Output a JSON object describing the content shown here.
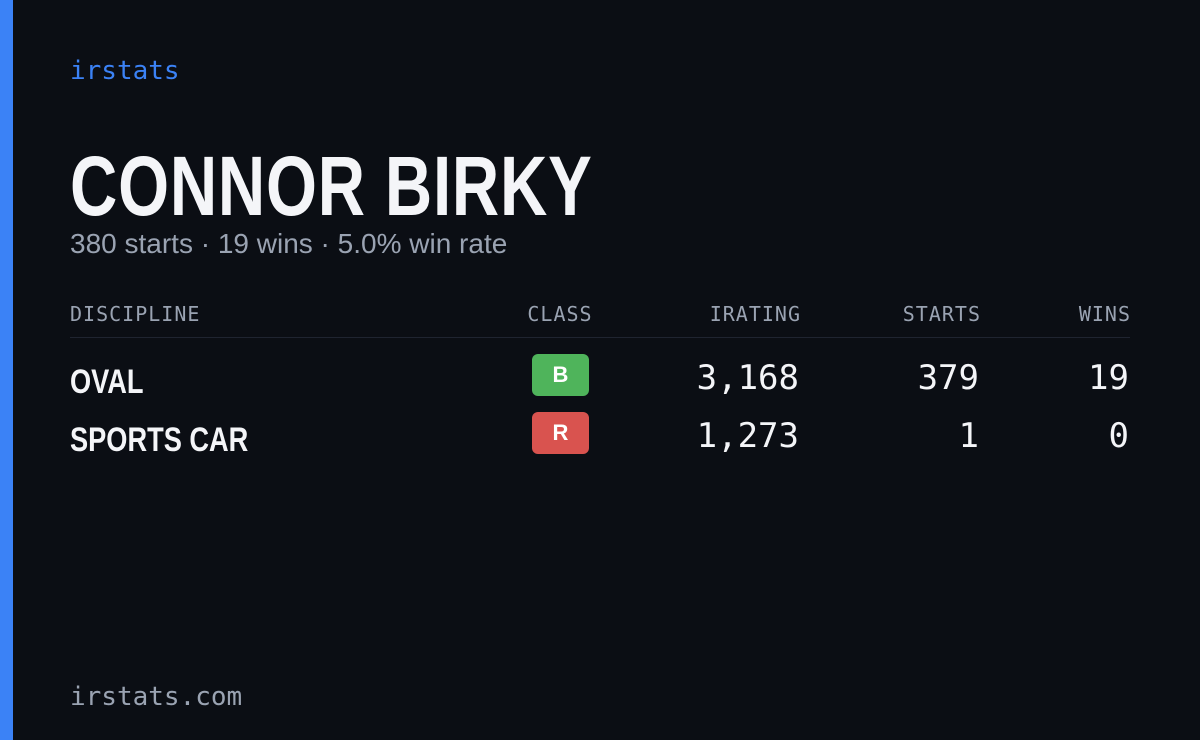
{
  "brand": "irstats",
  "driver": {
    "name": "CONNOR BIRKY",
    "summary": "380 starts · 19 wins · 5.0% win rate"
  },
  "table": {
    "headers": [
      "DISCIPLINE",
      "CLASS",
      "IRATING",
      "STARTS",
      "WINS"
    ],
    "rows": [
      [
        "OVAL",
        "B",
        "3,168",
        "379",
        "19"
      ],
      [
        "SPORTS CAR",
        "R",
        "1,273",
        "1",
        "0"
      ]
    ]
  },
  "footer": "irstats.com"
}
